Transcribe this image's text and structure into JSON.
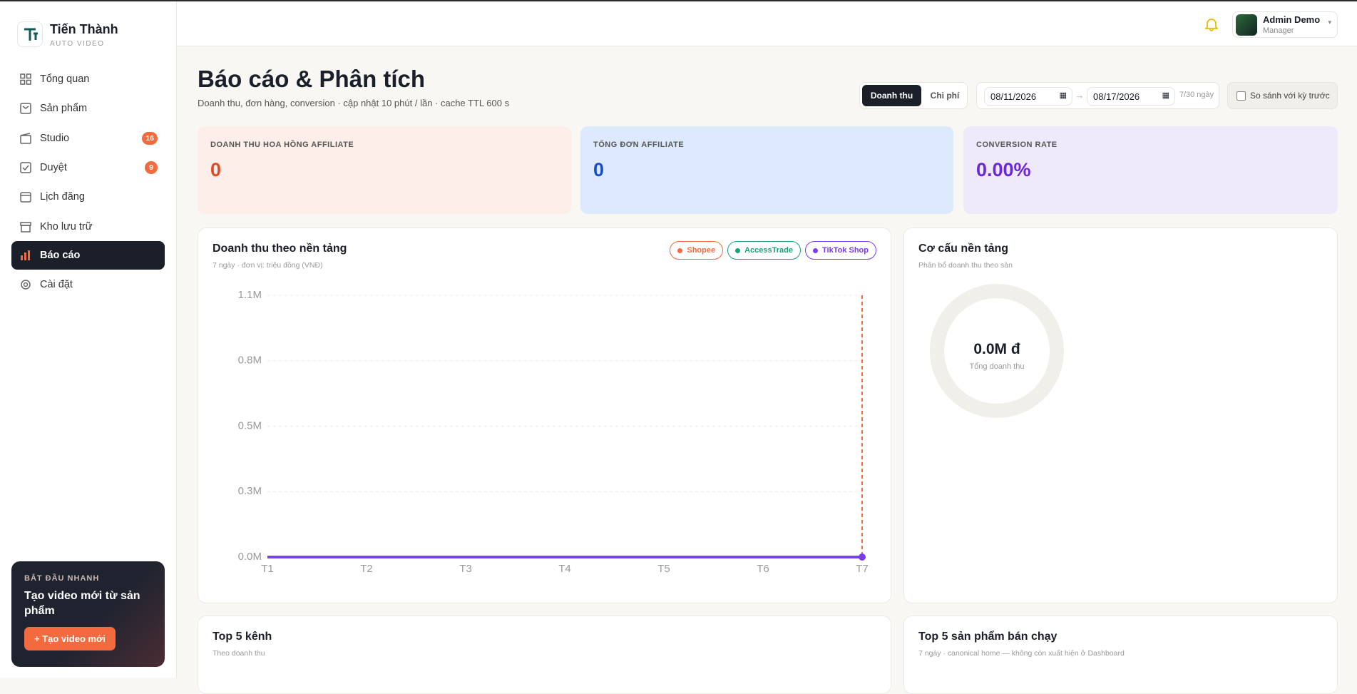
{
  "brand": {
    "name": "Tiến Thành",
    "tagline": "AUTO VIDEO"
  },
  "nav": [
    {
      "label": "Tổng quan"
    },
    {
      "label": "Sản phẩm"
    },
    {
      "label": "Studio",
      "badge": 16
    },
    {
      "label": "Duyệt",
      "badge": 9
    },
    {
      "label": "Lịch đăng"
    },
    {
      "label": "Kho lưu trữ"
    },
    {
      "label": "Báo cáo"
    },
    {
      "label": "Cài đặt"
    }
  ],
  "promo": {
    "kicker": "BẮT ĐẦU NHANH",
    "title": "Tạo video mới từ sản phẩm",
    "button": "+ Tạo video mới"
  },
  "user": {
    "name": "Admin Demo",
    "role": "Manager"
  },
  "header": {
    "title": "Báo cáo & Phân tích",
    "subtitle": "Doanh thu, đơn hàng, conversion · cập nhật 10 phút / lần · cache TTL 600 s"
  },
  "tabs": [
    "Doanh thu",
    "Chi phí"
  ],
  "date_range": {
    "from": "08/11/2026",
    "to": "08/17/2026",
    "note": "7/30 ngày"
  },
  "compare": "So sánh với kỳ trước",
  "kpis": [
    {
      "label": "DOANH THU HOA HỒNG AFFILIATE",
      "value": "0"
    },
    {
      "label": "TỔNG ĐƠN AFFILIATE",
      "value": "0"
    },
    {
      "label": "CONVERSION RATE",
      "value": "0.00%"
    }
  ],
  "chart_data": {
    "type": "line",
    "title": "Doanh thu theo nền tảng",
    "subtitle": "7 ngày · đơn vị: triệu đồng (VNĐ)",
    "categories": [
      "T1",
      "T2",
      "T3",
      "T4",
      "T5",
      "T6",
      "T7"
    ],
    "series": [
      {
        "name": "Shopee",
        "color": "#f26a3d",
        "values": [
          0,
          0,
          0,
          0,
          0,
          0,
          0
        ]
      },
      {
        "name": "AccessTrade",
        "color": "#16a37a",
        "values": [
          0,
          0,
          0,
          0,
          0,
          0,
          0
        ]
      },
      {
        "name": "TikTok Shop",
        "color": "#7c3aed",
        "values": [
          0,
          0,
          0,
          0,
          0,
          0,
          0
        ]
      }
    ],
    "ylim": [
      0,
      1100000
    ],
    "yticks": [
      {
        "value": 0,
        "label": "0.0M"
      },
      {
        "value": 275000,
        "label": "0.3M"
      },
      {
        "value": 550000,
        "label": "0.5M"
      },
      {
        "value": 825000,
        "label": "0.8M"
      },
      {
        "value": 1100000,
        "label": "1.1M"
      }
    ],
    "grid": true
  },
  "platform_mix": {
    "title": "Cơ cấu nền tảng",
    "subtitle": "Phân bổ doanh thu theo sàn",
    "total": "0.0M đ",
    "total_label": "Tổng doanh thu"
  },
  "bottom": [
    {
      "title": "Top 5 kênh",
      "subtitle": "Theo doanh thu"
    },
    {
      "title": "Top 5 sản phẩm bán chạy",
      "subtitle": "7 ngày · canonical home — không còn xuất hiện ở Dashboard"
    }
  ]
}
